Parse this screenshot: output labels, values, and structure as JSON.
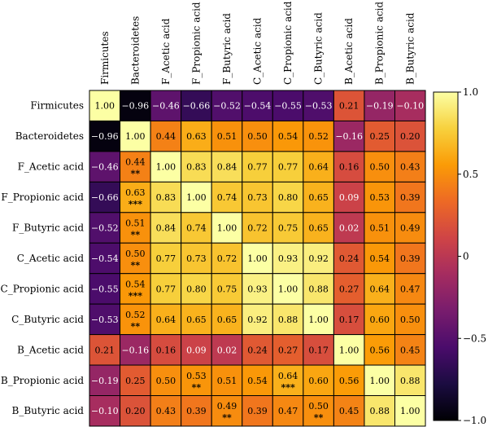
{
  "chart_data": {
    "type": "heatmap",
    "title": "",
    "xlabel": "",
    "ylabel": "",
    "colormap": "inferno",
    "colormap_stops": [
      "#000004",
      "#1b0c41",
      "#4a0c6b",
      "#781c6d",
      "#a52c60",
      "#cf4446",
      "#ed6925",
      "#fb9b06",
      "#f7d13d",
      "#fcffa4"
    ],
    "vmin": -1.0,
    "vmax": 1.0,
    "colorbar_ticks": [
      "1.0",
      "0.5",
      "0",
      "−0.5",
      "−1.0"
    ],
    "colorbar_tick_values": [
      1.0,
      0.5,
      0,
      -0.5,
      -1.0
    ],
    "row_labels": [
      "Firmicutes",
      "Bacteroidetes",
      "F_Acetic acid",
      "F_Propionic acid",
      "F_Butyric acid",
      "C_Acetic acid",
      "C_Propionic acid",
      "C_Butyric acid",
      "B_Acetic acid",
      "B_Propionic acid",
      "B_Butyric acid"
    ],
    "col_labels": [
      "Firmicutes",
      "Bacteroidetes",
      "F_Acetic acid",
      "F_Propionic acid",
      "F_Butyric acid",
      "C_Acetic acid",
      "C_Propionic acid",
      "C_Butyric acid",
      "B_Acetic acid",
      "B_Propionic acid",
      "B_Butyric acid"
    ],
    "cell_labels": [
      [
        "1.00",
        "−0.96",
        "−0.46",
        "−0.66",
        "−0.52",
        "−0.54",
        "−0.55",
        "−0.53",
        "0.21",
        "−0.19",
        "−0.10"
      ],
      [
        "−0.96",
        "1.00",
        "0.44",
        "0.63",
        "0.51",
        "0.50",
        "0.54",
        "0.52",
        "−0.16",
        "0.25",
        "0.20"
      ],
      [
        "−0.46",
        "0.44",
        "1.00",
        "0.83",
        "0.84",
        "0.77",
        "0.77",
        "0.64",
        "0.16",
        "0.50",
        "0.43"
      ],
      [
        "−0.66",
        "0.63",
        "0.83",
        "1.00",
        "0.74",
        "0.73",
        "0.80",
        "0.65",
        "0.09",
        "0.53",
        "0.39"
      ],
      [
        "−0.52",
        "0.51",
        "0.84",
        "0.74",
        "1.00",
        "0.72",
        "0.75",
        "0.65",
        "0.02",
        "0.51",
        "0.49"
      ],
      [
        "−0.54",
        "0.50",
        "0.77",
        "0.73",
        "0.72",
        "1.00",
        "0.93",
        "0.92",
        "0.24",
        "0.54",
        "0.39"
      ],
      [
        "−0.55",
        "0.54",
        "0.77",
        "0.80",
        "0.75",
        "0.93",
        "1.00",
        "0.88",
        "0.27",
        "0.64",
        "0.47"
      ],
      [
        "−0.53",
        "0.52",
        "0.64",
        "0.65",
        "0.65",
        "0.92",
        "0.88",
        "1.00",
        "0.17",
        "0.60",
        "0.50"
      ],
      [
        "0.21",
        "−0.16",
        "0.16",
        "0.09",
        "0.02",
        "0.24",
        "0.27",
        "0.17",
        "1.00",
        "0.56",
        "0.45"
      ],
      [
        "−0.19",
        "0.25",
        "0.50",
        "0.53",
        "0.51",
        "0.54",
        "0.64",
        "0.60",
        "0.56",
        "1.00",
        "0.88"
      ],
      [
        "−0.10",
        "0.20",
        "0.43",
        "0.39",
        "0.49",
        "0.39",
        "0.47",
        "0.50",
        "0.45",
        "0.88",
        "1.00"
      ]
    ],
    "values": [
      [
        1.0,
        -0.96,
        -0.46,
        -0.66,
        -0.52,
        -0.54,
        -0.55,
        -0.53,
        0.21,
        -0.19,
        -0.1
      ],
      [
        -0.96,
        1.0,
        0.44,
        0.63,
        0.51,
        0.5,
        0.54,
        0.52,
        -0.16,
        0.25,
        0.2
      ],
      [
        -0.46,
        0.44,
        1.0,
        0.83,
        0.84,
        0.77,
        0.77,
        0.64,
        0.16,
        0.5,
        0.43
      ],
      [
        -0.66,
        0.63,
        0.83,
        1.0,
        0.74,
        0.73,
        0.8,
        0.65,
        0.09,
        0.53,
        0.39
      ],
      [
        -0.52,
        0.51,
        0.84,
        0.74,
        1.0,
        0.72,
        0.75,
        0.65,
        0.02,
        0.51,
        0.49
      ],
      [
        -0.54,
        0.5,
        0.77,
        0.73,
        0.72,
        1.0,
        0.93,
        0.92,
        0.24,
        0.54,
        0.39
      ],
      [
        -0.55,
        0.54,
        0.77,
        0.8,
        0.75,
        0.93,
        1.0,
        0.88,
        0.27,
        0.64,
        0.47
      ],
      [
        -0.53,
        0.52,
        0.64,
        0.65,
        0.65,
        0.92,
        0.88,
        1.0,
        0.17,
        0.6,
        0.5
      ],
      [
        0.21,
        -0.16,
        0.16,
        0.09,
        0.02,
        0.24,
        0.27,
        0.17,
        1.0,
        0.56,
        0.45
      ],
      [
        -0.19,
        0.25,
        0.5,
        0.53,
        0.51,
        0.54,
        0.64,
        0.6,
        0.56,
        1.0,
        0.88
      ],
      [
        -0.1,
        0.2,
        0.43,
        0.39,
        0.49,
        0.39,
        0.47,
        0.5,
        0.45,
        0.88,
        1.0
      ]
    ],
    "significance": [
      [
        "",
        "",
        "",
        "",
        "",
        "",
        "",
        "",
        "",
        "",
        ""
      ],
      [
        "",
        "",
        "",
        "",
        "",
        "",
        "",
        "",
        "",
        "",
        ""
      ],
      [
        "",
        "**",
        "",
        "",
        "",
        "",
        "",
        "",
        "",
        "",
        ""
      ],
      [
        "",
        "***",
        "",
        "",
        "",
        "",
        "",
        "",
        "",
        "",
        ""
      ],
      [
        "",
        "**",
        "",
        "",
        "",
        "",
        "",
        "",
        "",
        "",
        ""
      ],
      [
        "",
        "**",
        "",
        "",
        "",
        "",
        "",
        "",
        "",
        "",
        ""
      ],
      [
        "",
        "***",
        "",
        "",
        "",
        "",
        "",
        "",
        "",
        "",
        ""
      ],
      [
        "",
        "**",
        "",
        "",
        "",
        "",
        "",
        "",
        "",
        "",
        ""
      ],
      [
        "",
        "",
        "",
        "",
        "",
        "",
        "",
        "",
        "",
        "",
        ""
      ],
      [
        "",
        "",
        "",
        "**",
        "",
        "",
        "***",
        "",
        "",
        "",
        ""
      ],
      [
        "",
        "",
        "",
        "",
        "**",
        "",
        "",
        "**",
        "",
        "",
        ""
      ]
    ]
  }
}
